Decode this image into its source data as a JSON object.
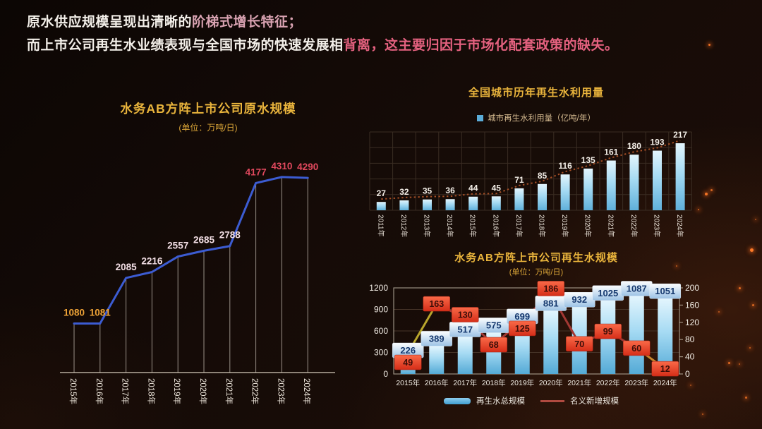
{
  "header": {
    "line1_normal": "原水供应规模呈现出清晰的",
    "line1_accent": "阶梯式增长特征；",
    "line2_normal": "而上市公司再生水业绩表现与全国市场的快速发展相",
    "line2_accent": "背离，这主要归因于市场化配套政策的缺失。"
  },
  "colors": {
    "title_gold": "#e9b43c",
    "header_accent_pink": "#d8a2b1",
    "header_accent_red": "#e4617f",
    "bar_blue": "#7fc5e9",
    "raw_line_blue": "#3c5cd2",
    "new_scale_line_red": "#a23833",
    "trend_dotted_orange": "#a34e26"
  },
  "chart_data": [
    {
      "id": "raw-water-scale",
      "type": "line",
      "title": "水务AB方阵上市公司原水规模",
      "subtitle": "(单位：万吨/日)",
      "categories": [
        "2015年",
        "2016年",
        "2017年",
        "2018年",
        "2019年",
        "2020年",
        "2021年",
        "2022年",
        "2023年",
        "2024年"
      ],
      "values": [
        1080,
        1081,
        2085,
        2216,
        2557,
        2685,
        2788,
        4177,
        4310,
        4290
      ],
      "label_colors": [
        "#f0a437",
        "#f0a437",
        "#f2dee4",
        "#f2dee4",
        "#f2dee4",
        "#f2dee4",
        "#f2dee4",
        "#e3495e",
        "#e3495e",
        "#e3495e"
      ],
      "line_color": "#3c5cd2",
      "ylim": [
        0,
        4800
      ],
      "grid": false,
      "legend_position": "none"
    },
    {
      "id": "national-reclaimed-water",
      "type": "bar",
      "title": "全国城市历年再生水利用量",
      "legend": "城市再生水利用量（亿吨/年）",
      "categories": [
        "2011年",
        "2012年",
        "2013年",
        "2014年",
        "2015年",
        "2016年",
        "2017年",
        "2018年",
        "2019年",
        "2020年",
        "2021年",
        "2022年",
        "2023年",
        "2024年"
      ],
      "values": [
        27,
        32,
        35,
        36,
        44,
        45,
        71,
        85,
        116,
        135,
        161,
        180,
        193,
        217
      ],
      "bar_color": "#7fc5e9",
      "trendline": {
        "style": "dotted",
        "color": "#a34e26"
      },
      "ylim": [
        0,
        254
      ],
      "grid": true,
      "legend_position": "top"
    },
    {
      "id": "listed-reclaimed-water-scale",
      "type": "combo",
      "title": "水务AB方阵上市公司再生水规模",
      "subtitle": "(单位：万吨/日)",
      "categories": [
        "2015年",
        "2016年",
        "2017年",
        "2018年",
        "2019年",
        "2020年",
        "2021年",
        "2022年",
        "2023年",
        "2024年"
      ],
      "series": [
        {
          "name": "再生水总规模",
          "type": "bar",
          "axis": "left",
          "color": "#7fc5e9",
          "values": [
            226,
            389,
            517,
            575,
            699,
            881,
            932,
            1025,
            1087,
            1051
          ]
        },
        {
          "name": "名义新增规模",
          "type": "line",
          "axis": "right",
          "color": "#a23833",
          "segment_colors": [
            "#b8a52c",
            "#a23833",
            "#a23833",
            "#a23833",
            "#a23833",
            "#a23833",
            "#a23833",
            "#a23833",
            "#c8862e"
          ],
          "values": [
            49,
            163,
            130,
            68,
            125,
            186,
            70,
            99,
            60,
            12
          ]
        }
      ],
      "left_axis_ticks": [
        0,
        300,
        600,
        900,
        1200
      ],
      "right_axis_ticks": [
        0,
        40,
        80,
        120,
        160,
        200
      ],
      "left_ylim": [
        0,
        1200
      ],
      "right_ylim": [
        0,
        200
      ],
      "grid": true,
      "legend_position": "bottom"
    }
  ]
}
